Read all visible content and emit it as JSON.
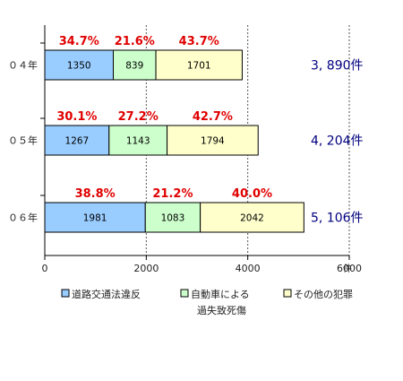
{
  "chart_data": {
    "type": "bar",
    "orientation": "horizontal",
    "stacked": true,
    "categories": [
      "０４年",
      "０５年",
      "０６年"
    ],
    "series": [
      {
        "name": "道路交通法違反",
        "values": [
          1350,
          1267,
          1981
        ],
        "color": "#99ccff"
      },
      {
        "name": "自動車による過失致死傷",
        "values": [
          839,
          1143,
          1083
        ],
        "color": "#ccffcc"
      },
      {
        "name": "その他の犯罪",
        "values": [
          1701,
          1794,
          2042
        ],
        "color": "#ffffcc"
      }
    ],
    "percent_labels": [
      [
        "34.7%",
        "21.6%",
        "43.7%"
      ],
      [
        "30.1%",
        "27.2%",
        "42.7%"
      ],
      [
        "38.8%",
        "21.2%",
        "40.0%"
      ]
    ],
    "totals": [
      "3, 890件",
      "4, 204件",
      "5, 106件"
    ],
    "x_ticks": [
      "0",
      "2000",
      "4000",
      "6000"
    ],
    "x_tick_values": [
      0,
      2000,
      4000,
      6000
    ],
    "xlim": [
      0,
      6000
    ],
    "xunit": "件",
    "grid": "vertical-dashed",
    "legend_position": "bottom",
    "legend": [
      "道路交通法違反",
      "自動車による",
      "過失致死傷",
      "その他の犯罪"
    ],
    "colors": {
      "percent": "#e00000",
      "total": "#000080"
    }
  }
}
